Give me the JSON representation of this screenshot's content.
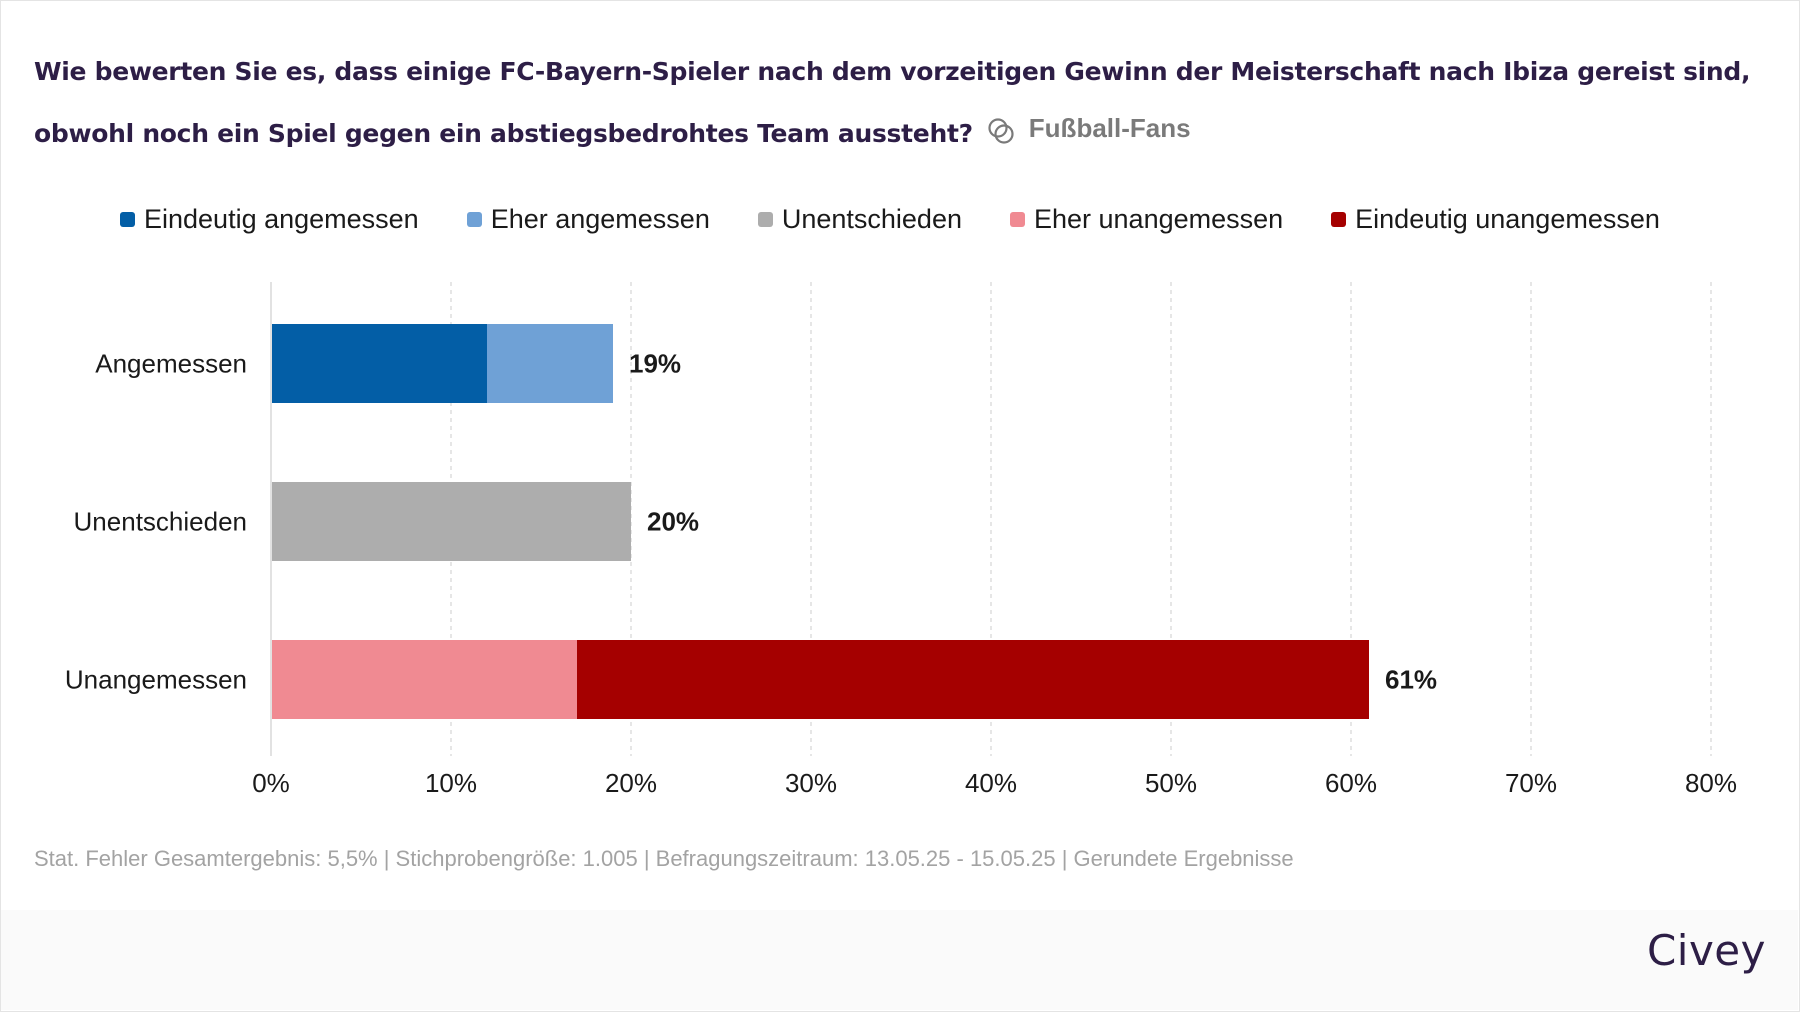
{
  "header": {
    "title_line1": "Wie bewerten Sie es, dass einige FC-Bayern-Spieler nach dem vorzeitigen Gewinn der Meisterschaft nach Ibiza gereist sind,",
    "title_line2": "obwohl noch ein Spiel gegen ein abstiegsbedrohtes Team aussteht?",
    "segment_icon": "segment-circles-icon",
    "segment_label": "Fußball-Fans"
  },
  "legend": [
    {
      "label": "Eindeutig angemessen",
      "color": "#035ea6"
    },
    {
      "label": "Eher angemessen",
      "color": "#6fa1d6"
    },
    {
      "label": "Unentschieden",
      "color": "#adadad"
    },
    {
      "label": "Eher unangemessen",
      "color": "#f08a92"
    },
    {
      "label": "Eindeutig unangemessen",
      "color": "#a50000"
    }
  ],
  "chart_data": {
    "type": "bar",
    "orientation": "horizontal",
    "stacked": true,
    "title": "Wie bewerten Sie es, dass einige FC-Bayern-Spieler nach dem vorzeitigen Gewinn der Meisterschaft nach Ibiza gereist sind, obwohl noch ein Spiel gegen ein abstiegsbedrohtes Team aussteht?",
    "categories": [
      "Angemessen",
      "Unentschieden",
      "Unangemessen"
    ],
    "series": [
      {
        "name": "Eindeutig angemessen",
        "color": "#035ea6",
        "values": [
          12,
          0,
          0
        ]
      },
      {
        "name": "Eher angemessen",
        "color": "#6fa1d6",
        "values": [
          7,
          0,
          0
        ]
      },
      {
        "name": "Unentschieden",
        "color": "#adadad",
        "values": [
          0,
          20,
          0
        ]
      },
      {
        "name": "Eher unangemessen",
        "color": "#f08a92",
        "values": [
          0,
          0,
          17
        ]
      },
      {
        "name": "Eindeutig unangemessen",
        "color": "#a50000",
        "values": [
          0,
          0,
          44
        ]
      }
    ],
    "totals": [
      19,
      20,
      61
    ],
    "total_labels": [
      "19%",
      "20%",
      "61%"
    ],
    "xlabel": "",
    "ylabel": "",
    "xlim": [
      0,
      80
    ],
    "xticks": [
      0,
      10,
      20,
      30,
      40,
      50,
      60,
      70,
      80
    ],
    "xtick_labels": [
      "0%",
      "10%",
      "20%",
      "30%",
      "40%",
      "50%",
      "60%",
      "70%",
      "80%"
    ],
    "grid": true,
    "legend_position": "top"
  },
  "footnote": "Stat. Fehler Gesamtergebnis: 5,5% | Stichprobengröße: 1.005 | Befragungszeitraum: 13.05.25 - 15.05.25 | Gerundete Ergebnisse",
  "brand": "Civey"
}
